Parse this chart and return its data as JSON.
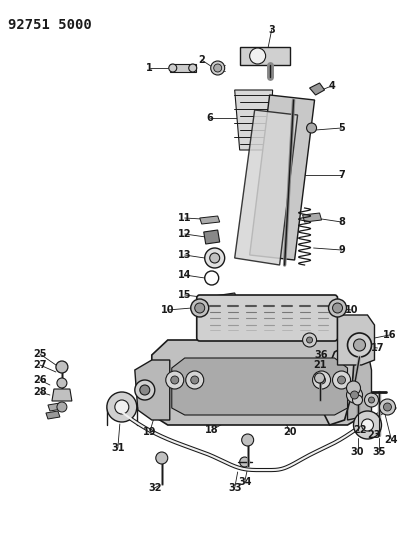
{
  "title": "92751 5000",
  "bg": "#ffffff",
  "lc": "#1a1a1a",
  "fig_w": 4.0,
  "fig_h": 5.33,
  "dpi": 100
}
